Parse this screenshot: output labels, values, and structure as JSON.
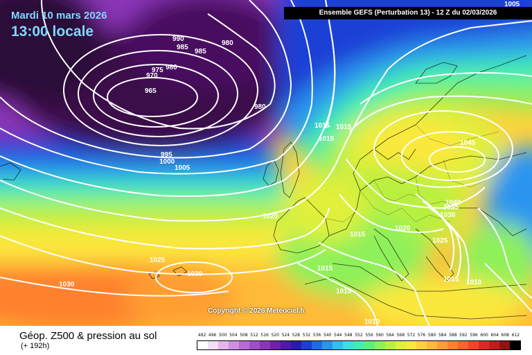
{
  "header": {
    "date": "Mardi 10 mars 2026",
    "time": "13:00 locale",
    "model": "Ensemble GEFS  (Perturbation 13)  -  12 Z du 02/03/2026"
  },
  "copyright": "Copyright © 2026 Meteociel.fr",
  "legend": {
    "title": "Géop. Z500 & pression au sol",
    "subtitle": "(+ 192h)",
    "scale": [
      "492",
      "496",
      "500",
      "504",
      "508",
      "512",
      "516",
      "520",
      "524",
      "528",
      "532",
      "536",
      "540",
      "544",
      "548",
      "552",
      "556",
      "560",
      "564",
      "568",
      "572",
      "576",
      "580",
      "584",
      "588",
      "592",
      "596",
      "600",
      "604",
      "608",
      "612"
    ],
    "colors": [
      "#ffffff",
      "#f5ddf5",
      "#e3b6ea",
      "#cf8fe0",
      "#b86bd3",
      "#a04cc5",
      "#8a35b6",
      "#7220a8",
      "#4f1aa8",
      "#2a1ab5",
      "#1c3fd6",
      "#1f6ae6",
      "#2b95ee",
      "#33bff0",
      "#39e0e0",
      "#3ff0b0",
      "#5cf07a",
      "#8ef05a",
      "#b9f040",
      "#e0f03a",
      "#fbe83c",
      "#ffd23a",
      "#ffba38",
      "#ff9e33",
      "#ff812e",
      "#ff622a",
      "#f5432a",
      "#e02828",
      "#c01c1c",
      "#8e1414",
      "#000000"
    ]
  },
  "isobars": [
    "1005",
    "990",
    "985",
    "985",
    "980",
    "980",
    "975",
    "970",
    "965",
    "980",
    "1015",
    "1015",
    "1015",
    "1045",
    "995",
    "1000",
    "1005",
    "1020",
    "1020",
    "1040",
    "1035",
    "1030",
    "1025",
    "1015",
    "1025",
    "1030",
    "1030",
    "1015",
    "1015",
    "1015",
    "1010",
    "1010"
  ]
}
